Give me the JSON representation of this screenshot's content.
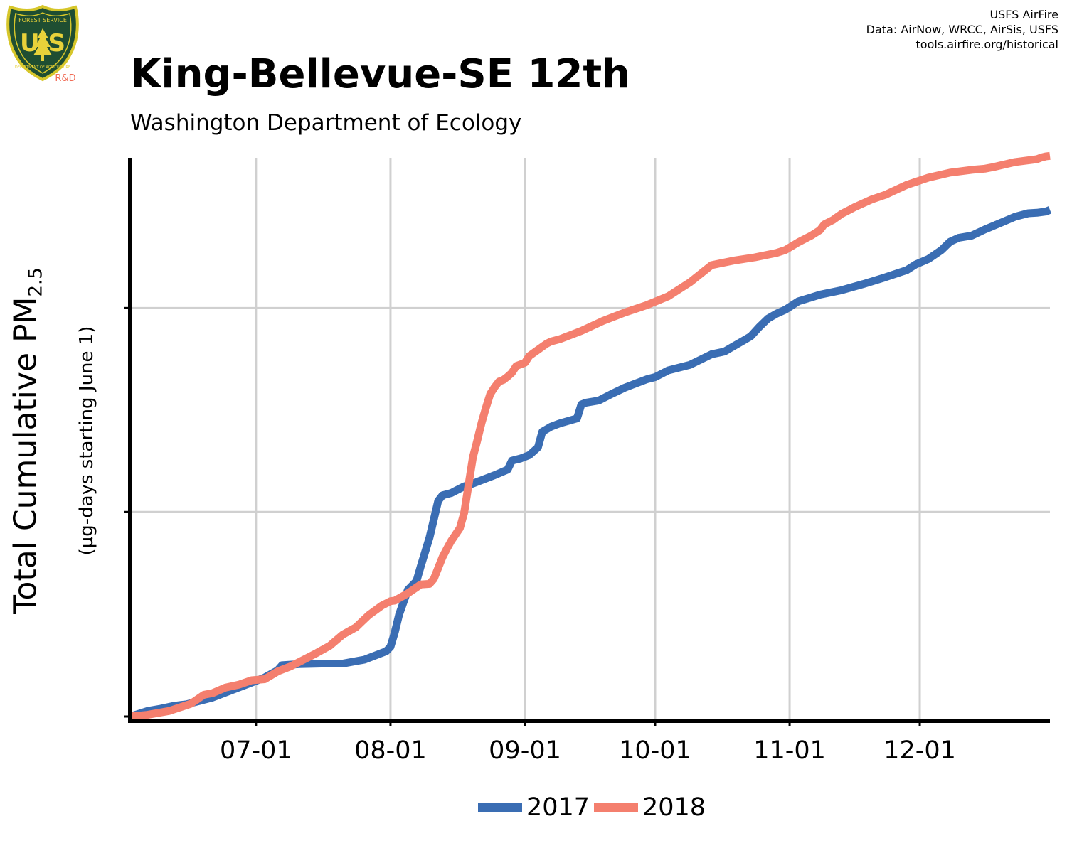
{
  "header": {
    "title": "King-Bellevue-SE 12th",
    "subtitle": "Washington Department of Ecology",
    "credits": [
      "USFS AirFire",
      "Data: AirNow, WRCC, AirSis, USFS",
      "tools.airfire.org/historical"
    ],
    "logo": {
      "top_text": "FOREST SERVICE",
      "letters": "U S",
      "bottom_text": "DEPARTMENT OF AGRICULTURE",
      "badge": "R&D",
      "colors": {
        "shield": "#1f4e32",
        "border": "#d6c62a",
        "letters": "#e8d23a",
        "badge": "#f06b55"
      }
    }
  },
  "chart_data": {
    "type": "line",
    "title": "King-Bellevue-SE 12th",
    "subtitle": "Washington Department of Ecology",
    "ylabel": "Total Cumulative PM",
    "ylabel_subscript": "2.5",
    "ylabel_note": "(µg-days starting June 1)",
    "xlabel": "",
    "x_tick_labels": [
      "07-01",
      "08-01",
      "09-01",
      "10-01",
      "11-01",
      "12-01"
    ],
    "x_tick_days": [
      30,
      61,
      92,
      122,
      153,
      183
    ],
    "xlim_days": [
      1,
      213
    ],
    "y_tick_labels": [
      "",
      "",
      ""
    ],
    "y_tick_fractions": [
      0,
      0.367,
      0.733
    ],
    "grid": true,
    "legend_position": "bottom",
    "series": [
      {
        "name": "2017",
        "color": "#3a6db3",
        "x_days": [
          1,
          5,
          8,
          11,
          14,
          17,
          20,
          23,
          26,
          29,
          32,
          35,
          36,
          40,
          45,
          50,
          55,
          60,
          61,
          62,
          63,
          65,
          67,
          68,
          70,
          72,
          73,
          75,
          78,
          80,
          85,
          88,
          89,
          91,
          93,
          95,
          96,
          98,
          100,
          104,
          105,
          106,
          109,
          112,
          115,
          120,
          122,
          125,
          130,
          135,
          138,
          140,
          142,
          144,
          146,
          148,
          150,
          152,
          155,
          158,
          160,
          165,
          170,
          175,
          180,
          182,
          185,
          188,
          190,
          192,
          195,
          198,
          202,
          205,
          208,
          210,
          212,
          213
        ],
        "y_frac": [
          0,
          0.01,
          0.014,
          0.019,
          0.022,
          0.028,
          0.034,
          0.043,
          0.052,
          0.061,
          0.07,
          0.083,
          0.092,
          0.094,
          0.095,
          0.095,
          0.102,
          0.117,
          0.125,
          0.151,
          0.183,
          0.227,
          0.243,
          0.27,
          0.321,
          0.387,
          0.397,
          0.401,
          0.413,
          0.418,
          0.433,
          0.443,
          0.459,
          0.463,
          0.469,
          0.483,
          0.511,
          0.52,
          0.526,
          0.535,
          0.56,
          0.563,
          0.567,
          0.579,
          0.59,
          0.605,
          0.609,
          0.621,
          0.631,
          0.65,
          0.655,
          0.664,
          0.673,
          0.682,
          0.699,
          0.714,
          0.723,
          0.73,
          0.745,
          0.752,
          0.757,
          0.765,
          0.776,
          0.788,
          0.801,
          0.811,
          0.821,
          0.837,
          0.852,
          0.859,
          0.863,
          0.874,
          0.887,
          0.897,
          0.903,
          0.904,
          0.906,
          0.909
        ]
      },
      {
        "name": "2018",
        "color": "#f47f6e",
        "x_days": [
          1,
          5,
          10,
          15,
          18,
          20,
          23,
          26,
          29,
          32,
          35,
          38,
          41,
          44,
          47,
          50,
          53,
          56,
          59,
          61,
          62,
          65,
          68,
          70,
          71,
          73,
          74,
          75,
          77,
          78,
          79,
          80,
          81,
          82,
          83,
          84,
          85,
          86,
          87,
          88,
          89,
          90,
          92,
          93,
          95,
          97,
          98,
          100,
          105,
          110,
          115,
          120,
          125,
          130,
          135,
          140,
          145,
          150,
          152,
          155,
          158,
          160,
          161,
          163,
          165,
          167,
          168,
          170,
          172,
          175,
          180,
          185,
          190,
          195,
          198,
          200,
          205,
          210,
          211,
          212,
          213
        ],
        "y_frac": [
          0,
          0.003,
          0.01,
          0.023,
          0.039,
          0.042,
          0.052,
          0.057,
          0.065,
          0.067,
          0.081,
          0.09,
          0.102,
          0.114,
          0.127,
          0.147,
          0.16,
          0.182,
          0.199,
          0.207,
          0.208,
          0.221,
          0.237,
          0.238,
          0.247,
          0.286,
          0.301,
          0.315,
          0.338,
          0.366,
          0.416,
          0.465,
          0.495,
          0.527,
          0.554,
          0.579,
          0.591,
          0.601,
          0.604,
          0.61,
          0.617,
          0.629,
          0.635,
          0.647,
          0.658,
          0.669,
          0.673,
          0.677,
          0.692,
          0.71,
          0.725,
          0.738,
          0.754,
          0.779,
          0.81,
          0.818,
          0.824,
          0.832,
          0.837,
          0.851,
          0.863,
          0.873,
          0.883,
          0.891,
          0.902,
          0.91,
          0.914,
          0.921,
          0.928,
          0.936,
          0.954,
          0.967,
          0.976,
          0.981,
          0.983,
          0.986,
          0.995,
          1.0,
          1.003,
          1.005,
          1.006
        ]
      }
    ]
  }
}
